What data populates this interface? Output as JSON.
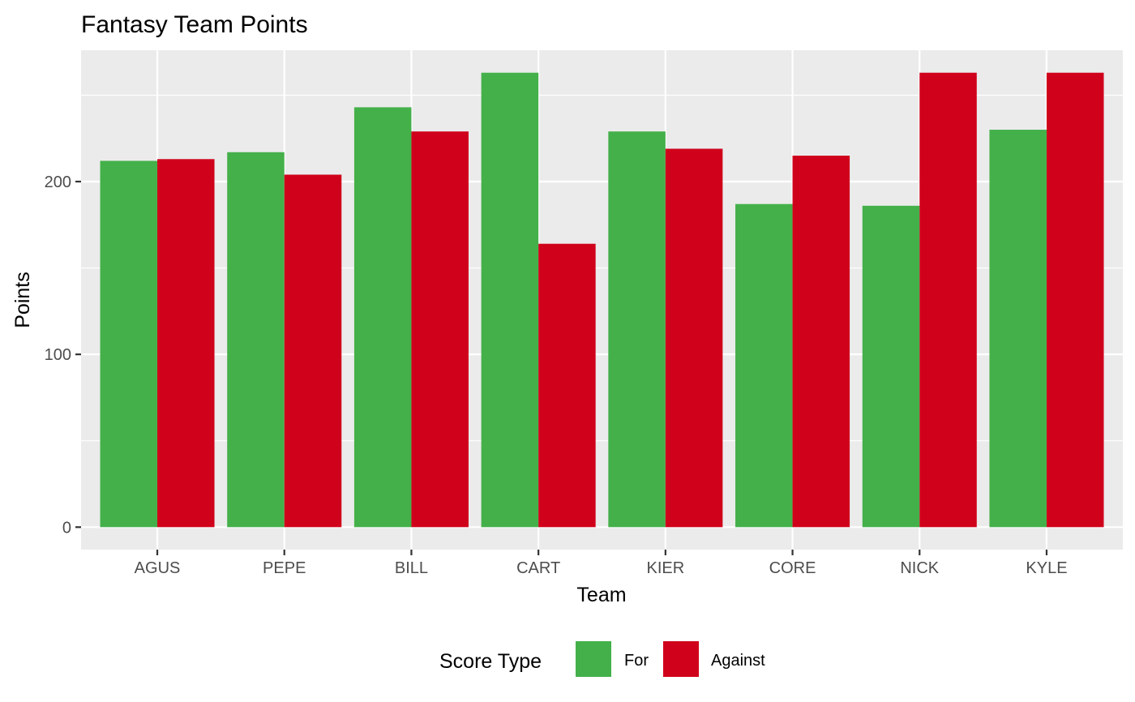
{
  "chart_data": {
    "type": "bar",
    "title": "Fantasy Team Points",
    "xlabel": "Team",
    "ylabel": "Points",
    "categories": [
      "AGUS",
      "PEPE",
      "BILL",
      "CART",
      "KIER",
      "CORE",
      "NICK",
      "KYLE"
    ],
    "series": [
      {
        "name": "For",
        "color": "#44b04a",
        "values": [
          212,
          217,
          243,
          263,
          229,
          187,
          186,
          230
        ]
      },
      {
        "name": "Against",
        "color": "#d0021b",
        "values": [
          213,
          204,
          229,
          164,
          219,
          215,
          263,
          263
        ]
      }
    ],
    "ylim": [
      -13,
      276
    ],
    "yticks": [
      0,
      100,
      200
    ],
    "grid": true,
    "legend": {
      "title": "Score Type",
      "position": "bottom"
    }
  }
}
